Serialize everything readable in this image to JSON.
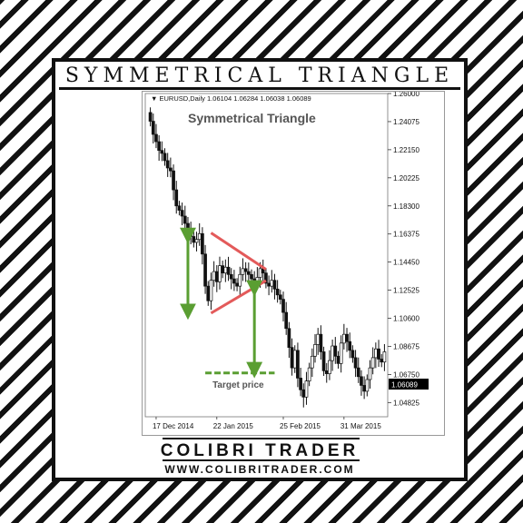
{
  "header": {
    "title": "SYMMETRICAL TRIANGLE"
  },
  "footer": {
    "brand": "COLIBRI TRADER",
    "url": "WWW.COLIBRITRADER.COM"
  },
  "colors": {
    "triangle": "#e35a5a",
    "arrow": "#5a9e32",
    "candle": "#111111",
    "price_box": "#000000"
  },
  "chart_data": {
    "type": "candlestick",
    "title": "Symmetrical Triangle",
    "symbol_info": "EURUSD,Daily  1.06104 1.06284 1.06038 1.06089",
    "x_tick_labels": [
      "17 Dec 2014",
      "22 Jan 2015",
      "25 Feb 2015",
      "31 Mar 2015"
    ],
    "y_ticks": [
      "1.26000",
      "1.24075",
      "1.22150",
      "1.20225",
      "1.18300",
      "1.16375",
      "1.14450",
      "1.12525",
      "1.10600",
      "1.08675",
      "1.06750",
      "1.04825"
    ],
    "y_range": [
      1.0385,
      1.26
    ],
    "current_price": "1.06089",
    "current_price_value": 1.06089,
    "annotation": "Target price",
    "target_price_value": 1.0685,
    "triangle": {
      "upper": [
        [
          21,
          1.1645
        ],
        [
          40,
          1.1395
        ]
      ],
      "lower": [
        [
          21,
          1.1095
        ],
        [
          40,
          1.1318
        ]
      ]
    },
    "arrows": [
      {
        "x": 13,
        "from": 1.1625,
        "to": 1.1105
      },
      {
        "x": 36,
        "from": 1.1265,
        "to": 1.0705
      }
    ],
    "target_line": {
      "x_start": 19,
      "x_end": 43
    },
    "closes": [
      1.241,
      1.232,
      1.227,
      1.221,
      1.219,
      1.214,
      1.209,
      1.207,
      1.194,
      1.183,
      1.18,
      1.176,
      1.171,
      1.166,
      1.162,
      1.158,
      1.16,
      1.164,
      1.15,
      1.128,
      1.118,
      1.132,
      1.138,
      1.131,
      1.142,
      1.137,
      1.141,
      1.136,
      1.133,
      1.13,
      1.128,
      1.136,
      1.14,
      1.138,
      1.136,
      1.133,
      1.131,
      1.134,
      1.14,
      1.137,
      1.13,
      1.128,
      1.132,
      1.126,
      1.122,
      1.119,
      1.11,
      1.099,
      1.086,
      1.072,
      1.084,
      1.065,
      1.057,
      1.052,
      1.063,
      1.072,
      1.08,
      1.088,
      1.095,
      1.083,
      1.07,
      1.068,
      1.077,
      1.087,
      1.08,
      1.075,
      1.089,
      1.095,
      1.09,
      1.084,
      1.079,
      1.072,
      1.066,
      1.06,
      1.056,
      1.064,
      1.072,
      1.079,
      1.085,
      1.078,
      1.076,
      1.083
    ]
  }
}
